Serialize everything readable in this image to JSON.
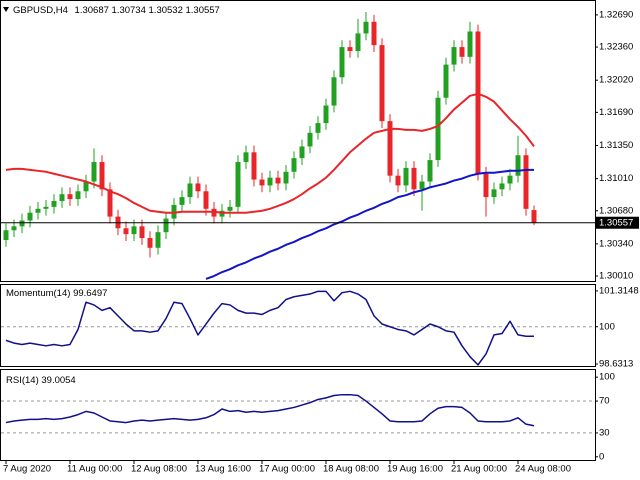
{
  "chart_data": [
    {
      "type": "candlestick",
      "title": "GBPUSD,H4",
      "categories": [
        "7 Aug 2020",
        null,
        null,
        null,
        null,
        null,
        null,
        null,
        "11 Aug 00:00",
        null,
        null,
        null,
        null,
        null,
        null,
        null,
        "12 Aug 08:00",
        null,
        null,
        null,
        null,
        null,
        null,
        null,
        "13 Aug 16:00",
        null,
        null,
        null,
        null,
        null,
        null,
        null,
        "17 Aug 00:00",
        null,
        null,
        null,
        null,
        null,
        null,
        null,
        "18 Aug 08:00",
        null,
        null,
        null,
        null,
        null,
        null,
        null,
        "19 Aug 16:00",
        null,
        null,
        null,
        null,
        null,
        null,
        null,
        "21 Aug 00:00",
        null,
        null,
        null,
        null,
        null,
        null,
        null,
        "24 Aug 08:00",
        null,
        null
      ],
      "open": [
        1.3038,
        1.3048,
        1.3052,
        1.3058,
        1.3066,
        1.307,
        1.3072,
        1.3078,
        1.3085,
        1.308,
        1.3088,
        1.3098,
        1.3118,
        1.309,
        1.3062,
        1.305,
        1.3044,
        1.3052,
        1.304,
        1.303,
        1.3046,
        1.306,
        1.3074,
        1.3082,
        1.3096,
        1.3088,
        1.307,
        1.3062,
        1.3068,
        1.3072,
        1.3118,
        1.3128,
        1.31,
        1.3094,
        1.3102,
        1.3096,
        1.3108,
        1.3122,
        1.3134,
        1.3148,
        1.3158,
        1.3176,
        1.3205,
        1.3236,
        1.3232,
        1.325,
        1.3262,
        1.3238,
        1.316,
        1.3104,
        1.3094,
        1.3112,
        1.309,
        1.3098,
        1.312,
        1.3184,
        1.3218,
        1.3236,
        1.3226,
        1.3252,
        1.3106,
        1.3082,
        1.309,
        1.3096,
        1.3104,
        1.3125,
        1.30687
      ],
      "high": [
        1.3055,
        1.3059,
        1.3065,
        1.3073,
        1.3077,
        1.3079,
        1.3085,
        1.3092,
        1.3092,
        1.3095,
        1.3105,
        1.3132,
        1.3125,
        1.3097,
        1.3069,
        1.3057,
        1.3059,
        1.3059,
        1.3047,
        1.3053,
        1.3067,
        1.3081,
        1.3089,
        1.3103,
        1.3103,
        1.3095,
        1.3077,
        1.3075,
        1.3079,
        1.3125,
        1.3135,
        1.3135,
        1.3107,
        1.3109,
        1.3109,
        1.3115,
        1.3129,
        1.3141,
        1.3155,
        1.3165,
        1.3183,
        1.3212,
        1.3243,
        1.3243,
        1.3265,
        1.3272,
        1.3269,
        1.3245,
        1.3167,
        1.3111,
        1.3119,
        1.3119,
        1.3105,
        1.3127,
        1.3191,
        1.3225,
        1.3243,
        1.3243,
        1.3262,
        1.3259,
        1.3113,
        1.3097,
        1.3103,
        1.3111,
        1.3145,
        1.3132,
        1.30734
      ],
      "low": [
        1.3031,
        1.3041,
        1.3045,
        1.3051,
        1.3059,
        1.3063,
        1.3065,
        1.3071,
        1.3073,
        1.3073,
        1.3081,
        1.3091,
        1.3083,
        1.3055,
        1.3043,
        1.3037,
        1.3037,
        1.3033,
        1.302,
        1.3023,
        1.3039,
        1.3053,
        1.3067,
        1.3075,
        1.3081,
        1.3063,
        1.3055,
        1.3055,
        1.3061,
        1.3065,
        1.3111,
        1.3093,
        1.3087,
        1.3087,
        1.3089,
        1.3089,
        1.3101,
        1.3115,
        1.3127,
        1.3141,
        1.3151,
        1.3169,
        1.3198,
        1.3225,
        1.3225,
        1.3243,
        1.3231,
        1.3153,
        1.3097,
        1.3087,
        1.3087,
        1.3083,
        1.3068,
        1.3091,
        1.3113,
        1.3177,
        1.3211,
        1.3219,
        1.3219,
        1.3099,
        1.3062,
        1.3075,
        1.3083,
        1.3089,
        1.3097,
        1.3063,
        1.30532
      ],
      "close": [
        1.3048,
        1.3052,
        1.3058,
        1.3066,
        1.307,
        1.3072,
        1.3078,
        1.3085,
        1.308,
        1.3088,
        1.3098,
        1.3118,
        1.309,
        1.3062,
        1.305,
        1.3044,
        1.3052,
        1.304,
        1.303,
        1.3046,
        1.306,
        1.3074,
        1.3082,
        1.3096,
        1.3088,
        1.307,
        1.3062,
        1.3068,
        1.3072,
        1.3118,
        1.3128,
        1.31,
        1.3094,
        1.3102,
        1.3096,
        1.3108,
        1.3122,
        1.3134,
        1.3148,
        1.3158,
        1.3176,
        1.3205,
        1.3236,
        1.3232,
        1.325,
        1.3262,
        1.3238,
        1.316,
        1.3104,
        1.3094,
        1.3112,
        1.309,
        1.3098,
        1.312,
        1.3184,
        1.3218,
        1.3236,
        1.3226,
        1.3252,
        1.3106,
        1.3082,
        1.309,
        1.3096,
        1.3104,
        1.3125,
        1.307,
        1.30557
      ],
      "up_color": "#22a022",
      "down_color": "#e8262a",
      "lines": [
        {
          "color": "#e8262a",
          "values": [
            1.311,
            1.3111,
            1.3111,
            1.311,
            1.3109,
            1.3108,
            1.3106,
            1.3104,
            1.3102,
            1.31,
            1.3098,
            1.3095,
            1.3092,
            1.3088,
            1.3085,
            1.3081,
            1.3076,
            1.3072,
            1.3068,
            1.3067,
            1.3066,
            1.3066,
            1.3067,
            1.3067,
            1.3067,
            1.3067,
            1.3067,
            1.3066,
            1.3066,
            1.3066,
            1.3066,
            1.3067,
            1.3068,
            1.307,
            1.3073,
            1.3076,
            1.308,
            1.3085,
            1.3091,
            1.3096,
            1.3102,
            1.311,
            1.3119,
            1.3128,
            1.3135,
            1.3142,
            1.3148,
            1.315,
            1.3152,
            1.3152,
            1.3151,
            1.3151,
            1.315,
            1.3152,
            1.3155,
            1.3163,
            1.3172,
            1.3179,
            1.3186,
            1.3188,
            1.3185,
            1.318,
            1.3171,
            1.3162,
            1.3154,
            1.3145,
            1.3134
          ]
        },
        {
          "color": "#1414c8",
          "values": [
            null,
            null,
            null,
            null,
            null,
            null,
            null,
            null,
            null,
            null,
            null,
            null,
            null,
            null,
            null,
            null,
            null,
            null,
            null,
            null,
            null,
            null,
            null,
            null,
            null,
            1.2998,
            1.3001,
            1.3005,
            1.3008,
            1.3012,
            1.3015,
            1.3019,
            1.3022,
            1.3026,
            1.3029,
            1.3033,
            1.3036,
            1.304,
            1.3043,
            1.3047,
            1.305,
            1.3054,
            1.3057,
            1.3061,
            1.3064,
            1.3068,
            1.3071,
            1.3075,
            1.3078,
            1.3082,
            1.3084,
            1.3087,
            1.3089,
            1.3092,
            1.3094,
            1.3096,
            1.3099,
            1.3101,
            1.3104,
            1.3106,
            1.3107,
            1.3107,
            1.3108,
            1.3109,
            1.3109,
            1.311,
            1.311
          ]
        }
      ],
      "ylim": [
        1.29959,
        1.32833
      ],
      "yticks": [
        {
          "value": 1.3269,
          "label": "1.32690"
        },
        {
          "value": 1.3236,
          "label": "1.32360"
        },
        {
          "value": 1.3202,
          "label": "1.32020"
        },
        {
          "value": 1.3169,
          "label": "1.31690"
        },
        {
          "value": 1.3135,
          "label": "1.31350"
        },
        {
          "value": 1.3101,
          "label": "1.31010"
        },
        {
          "value": 1.3068,
          "label": "1.30680"
        },
        {
          "value": 1.3034,
          "label": "1.30340"
        },
        {
          "value": 1.3001,
          "label": "1.30010"
        }
      ]
    },
    {
      "type": "line",
      "title": "Momentum(14)",
      "color": "#10108a",
      "values": [
        99.5,
        99.4,
        99.35,
        99.4,
        99.35,
        99.3,
        99.35,
        99.3,
        99.35,
        99.9,
        100.9,
        100.8,
        100.6,
        100.7,
        100.4,
        100.1,
        99.85,
        99.85,
        99.8,
        99.85,
        100.3,
        100.9,
        100.85,
        100.3,
        99.7,
        100.1,
        100.5,
        100.85,
        100.8,
        100.6,
        100.5,
        100.5,
        100.45,
        100.6,
        100.7,
        101.0,
        101.1,
        101.15,
        101.2,
        101.3,
        101.3,
        100.95,
        101.25,
        101.3,
        101.2,
        101.0,
        100.4,
        100.1,
        100.0,
        99.9,
        99.85,
        99.7,
        99.9,
        100.1,
        100.0,
        99.85,
        99.8,
        99.3,
        98.9,
        98.6,
        99.0,
        99.7,
        99.75,
        100.2,
        99.7,
        99.65,
        99.6497
      ],
      "ylim": [
        98.559,
        101.532
      ],
      "yticks": [
        101.3148,
        100,
        98.6313
      ],
      "levels": [
        100
      ]
    },
    {
      "type": "line",
      "title": "RSI(14)",
      "color": "#10108a",
      "values": [
        43,
        45,
        46,
        47,
        47,
        48,
        47,
        48,
        50,
        53,
        57,
        55,
        50,
        45,
        44,
        43,
        45,
        46,
        45,
        46,
        47,
        48,
        47,
        46,
        47,
        49,
        53,
        60,
        57,
        58,
        56,
        57,
        56,
        57,
        58,
        60,
        62,
        65,
        68,
        72,
        74,
        77,
        78,
        78,
        77,
        70,
        62,
        54,
        45,
        44,
        44,
        44,
        45,
        54,
        61,
        63,
        63,
        62,
        55,
        45,
        44,
        44,
        44,
        45,
        49,
        41,
        39.0054
      ],
      "ylim": [
        -4,
        109
      ],
      "yticks": [
        100,
        70,
        30,
        0
      ],
      "levels": [
        70,
        30
      ]
    }
  ]
}
